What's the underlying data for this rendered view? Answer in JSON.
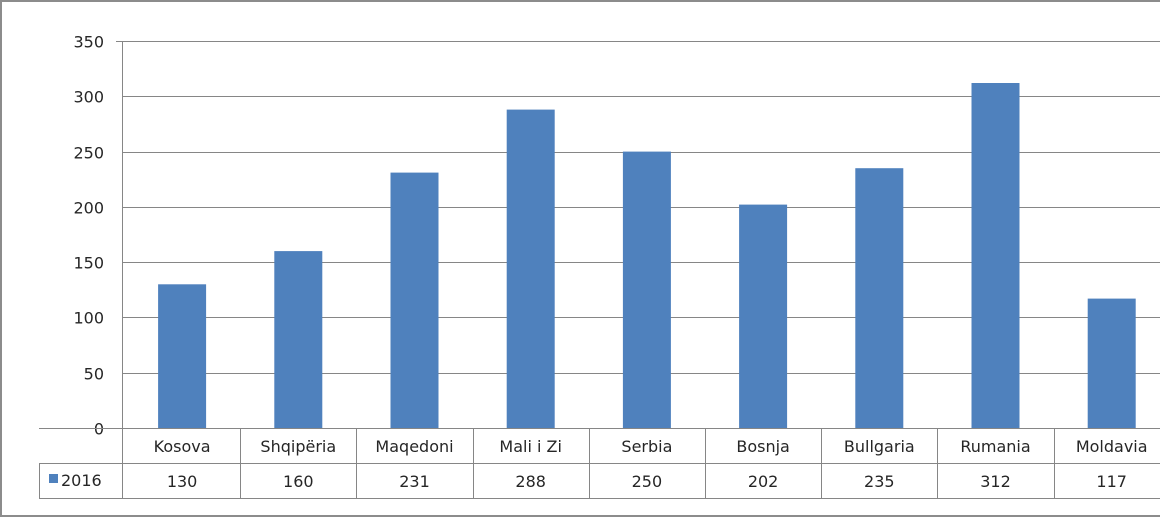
{
  "chart_data": {
    "type": "bar",
    "categories": [
      "Kosova",
      "Shqipëria",
      "Maqedoni",
      "Mali i Zi",
      "Serbia",
      "Bosnja",
      "Bullgaria",
      "Rumania",
      "Moldavia"
    ],
    "series": [
      {
        "name": "2016",
        "values": [
          130,
          160,
          231,
          288,
          250,
          202,
          235,
          312,
          117
        ],
        "color": "#4f81bd"
      }
    ],
    "yticks": [
      "0",
      "50",
      "100",
      "150",
      "200",
      "250",
      "300",
      "350"
    ],
    "ylim": [
      0,
      350
    ],
    "grid": true,
    "legend": "data-table",
    "data_table": true,
    "title": "",
    "xlabel": "",
    "ylabel": ""
  }
}
